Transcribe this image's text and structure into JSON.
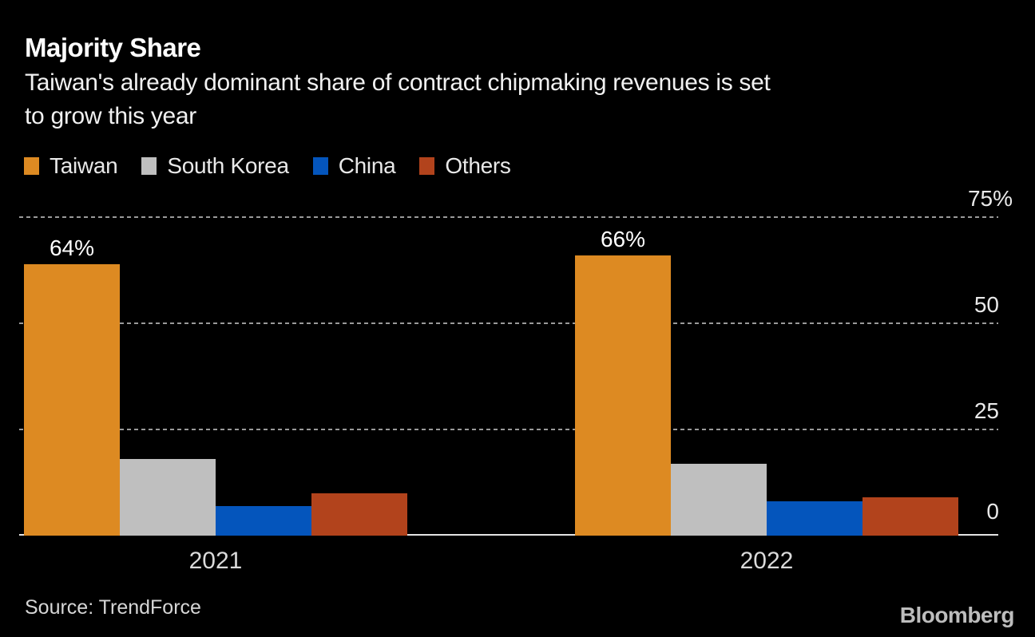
{
  "header": {
    "title": "Majority Share",
    "subtitle": "Taiwan's already dominant share of contract chipmaking revenues is set to grow this year",
    "subtitle_lines": [
      "Taiwan's already dominant share of contract chipmaking revenues is set",
      "to grow this year"
    ]
  },
  "chart_data": {
    "type": "bar",
    "title": "Majority Share",
    "categories": [
      "2021",
      "2022"
    ],
    "series": [
      {
        "name": "Taiwan",
        "color": "#dd8a22",
        "values": [
          64,
          66
        ]
      },
      {
        "name": "South Korea",
        "color": "#bfbfbf",
        "values": [
          18,
          17
        ]
      },
      {
        "name": "China",
        "color": "#0455bc",
        "values": [
          7,
          8
        ]
      },
      {
        "name": "Others",
        "color": "#b2431c",
        "values": [
          10,
          9
        ]
      }
    ],
    "data_labels": [
      {
        "series": "Taiwan",
        "category": "2021",
        "text": "64%"
      },
      {
        "series": "Taiwan",
        "category": "2022",
        "text": "66%"
      }
    ],
    "yaxis": {
      "unit": "%",
      "ylim": [
        0,
        75
      ],
      "ticks": [
        {
          "value": 75,
          "label": "75%"
        },
        {
          "value": 50,
          "label": "50"
        },
        {
          "value": 25,
          "label": "25"
        },
        {
          "value": 0,
          "label": "0"
        }
      ],
      "grid": "horizontal-dotted",
      "tick_side": "right"
    },
    "xlabel": "",
    "ylabel": "",
    "legend_position": "top-left"
  },
  "footer": {
    "source": "Source: TrendForce",
    "logo": "Bloomberg"
  },
  "colors": {
    "background": "#000000",
    "taiwan": "#dd8a22",
    "south_korea": "#bfbfbf",
    "china": "#0455bc",
    "others": "#b2431c",
    "gridline": "#9a9a9a",
    "axis_line": "#e3e3e3"
  }
}
